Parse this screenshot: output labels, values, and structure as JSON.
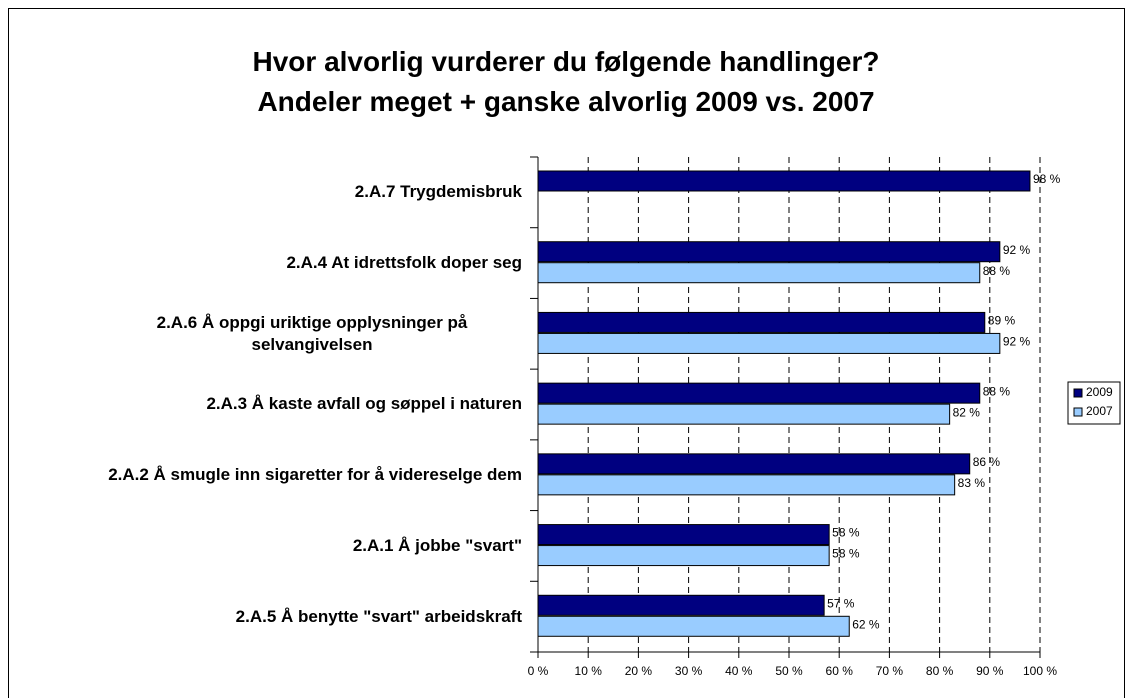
{
  "chart_data": {
    "type": "hbar",
    "title": [
      "Hvor alvorlig vurderer du følgende handlinger?",
      "Andeler meget + ganske alvorlig 2009 vs. 2007"
    ],
    "categories": [
      "2.A.7 Trygdemisbruk",
      "2.A.4 At idrettsfolk doper seg",
      "2.A.6 Å oppgi uriktige opplysninger på selvangivelsen",
      "2.A.3 Å kaste avfall og søppel i naturen",
      "2.A.2 Å smugle inn sigaretter for å videreselge dem",
      "2.A.1 Å jobbe \"svart\"",
      "2.A.5 Å benytte \"svart\" arbeidskraft"
    ],
    "series": [
      {
        "name": "2009",
        "color": "#000080",
        "values": [
          98,
          92,
          89,
          88,
          86,
          58,
          57
        ],
        "value_labels": [
          "98 %",
          "92 %",
          "89 %",
          "88 %",
          "86 %",
          "58 %",
          "57 %"
        ]
      },
      {
        "name": "2007",
        "color": "#99ccff",
        "values": [
          null,
          88,
          92,
          82,
          83,
          58,
          62
        ],
        "value_labels": [
          null,
          "88 %",
          "92 %",
          "82 %",
          "83 %",
          "58 %",
          "62 %"
        ]
      }
    ],
    "xlim": [
      0,
      100
    ],
    "xticks": [
      {
        "value": 0,
        "label": "0 %"
      },
      {
        "value": 10,
        "label": "10 %"
      },
      {
        "value": 20,
        "label": "20 %"
      },
      {
        "value": 30,
        "label": "30 %"
      },
      {
        "value": 40,
        "label": "40 %"
      },
      {
        "value": 50,
        "label": "50 %"
      },
      {
        "value": 60,
        "label": "60 %"
      },
      {
        "value": 70,
        "label": "70 %"
      },
      {
        "value": 80,
        "label": "80 %"
      },
      {
        "value": 90,
        "label": "90 %"
      },
      {
        "value": 100,
        "label": "100 %"
      }
    ],
    "grid": true,
    "legend": "right"
  }
}
